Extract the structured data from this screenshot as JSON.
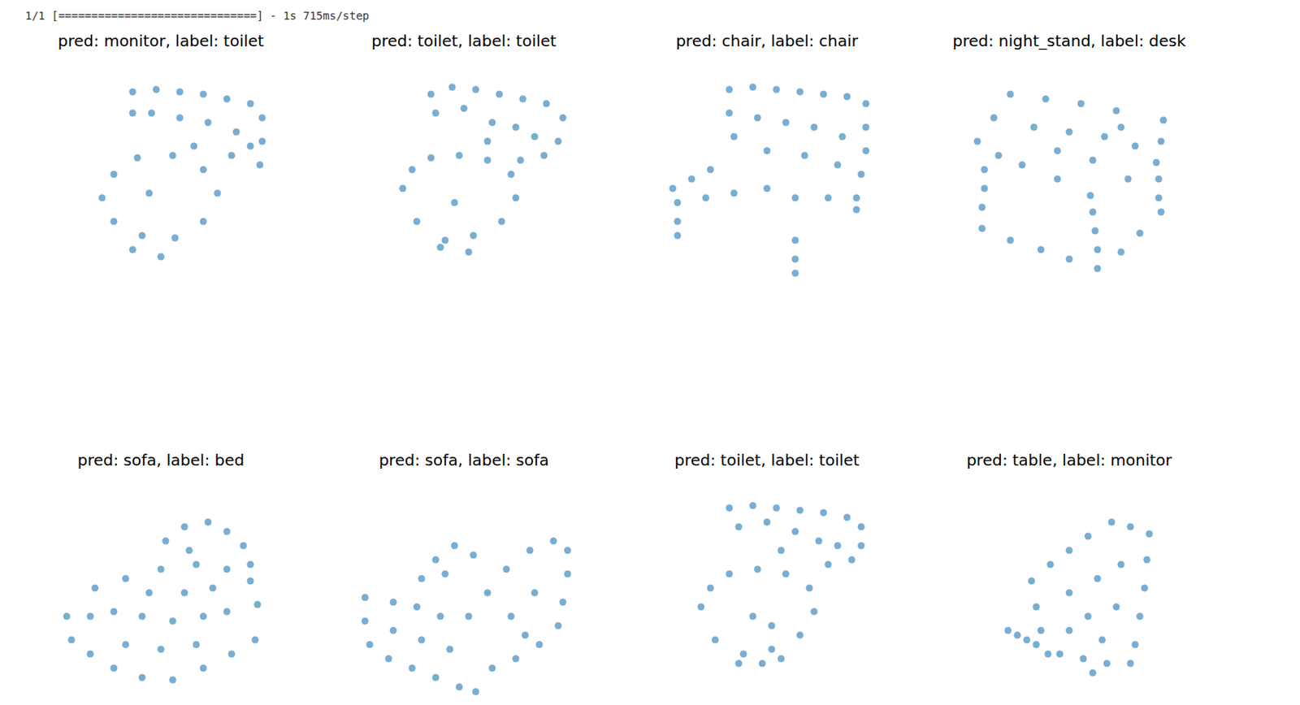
{
  "header": "1/1 [==============================] - 1s 715ms/step",
  "chart_data": [
    {
      "type": "scatter",
      "title": "pred: monitor, label: toilet",
      "color": "#1f77b4",
      "marker": "o",
      "xlim": [
        0,
        100
      ],
      "ylim": [
        0,
        100
      ],
      "tick_labels": false,
      "x": [
        38,
        48,
        58,
        68,
        78,
        88,
        93,
        93,
        92,
        38,
        46,
        58,
        70,
        82,
        64,
        80,
        88,
        25,
        30,
        40,
        55,
        68,
        74,
        68,
        56,
        42,
        30,
        45,
        50,
        38
      ],
      "values": [
        85,
        86,
        85,
        84,
        82,
        80,
        74,
        64,
        54,
        76,
        76,
        74,
        72,
        68,
        62,
        58,
        62,
        40,
        50,
        57,
        58,
        52,
        42,
        30,
        23,
        24,
        30,
        42,
        15,
        18
      ]
    },
    {
      "type": "scatter",
      "title": "pred: toilet, label: toilet",
      "color": "#1f77b4",
      "marker": "o",
      "xlim": [
        0,
        100
      ],
      "ylim": [
        0,
        100
      ],
      "tick_labels": false,
      "x": [
        36,
        45,
        55,
        65,
        75,
        85,
        92,
        90,
        84,
        74,
        38,
        50,
        62,
        72,
        80,
        60,
        24,
        28,
        36,
        48,
        60,
        70,
        72,
        66,
        54,
        42,
        30,
        46,
        52,
        40
      ],
      "values": [
        84,
        87,
        86,
        84,
        82,
        80,
        74,
        64,
        58,
        56,
        76,
        78,
        72,
        70,
        66,
        64,
        44,
        52,
        57,
        58,
        56,
        50,
        40,
        30,
        24,
        22,
        30,
        38,
        17,
        19
      ]
    },
    {
      "type": "scatter",
      "title": "pred: chair, label: chair",
      "color": "#1f77b4",
      "marker": "o",
      "xlim": [
        0,
        100
      ],
      "ylim": [
        0,
        100
      ],
      "tick_labels": false,
      "x": [
        34,
        44,
        54,
        64,
        74,
        84,
        92,
        92,
        92,
        90,
        34,
        36,
        46,
        58,
        70,
        82,
        50,
        66,
        80,
        10,
        18,
        26,
        12,
        24,
        36,
        50,
        62,
        76,
        12,
        12,
        62,
        62,
        62,
        88,
        88
      ],
      "values": [
        86,
        87,
        86,
        85,
        84,
        83,
        80,
        70,
        60,
        50,
        76,
        66,
        74,
        72,
        70,
        66,
        60,
        58,
        54,
        44,
        48,
        52,
        38,
        40,
        42,
        44,
        40,
        40,
        30,
        24,
        22,
        14,
        8,
        40,
        35
      ]
    },
    {
      "type": "scatter",
      "title": "pred: night_stand, label: desk",
      "color": "#1f77b4",
      "marker": "o",
      "xlim": [
        0,
        100
      ],
      "ylim": [
        0,
        100
      ],
      "tick_labels": false,
      "x": [
        11,
        18,
        25,
        40,
        55,
        70,
        90,
        89,
        87,
        75,
        59,
        45,
        30,
        20,
        35,
        50,
        65,
        78,
        45,
        60,
        72,
        14,
        14,
        13,
        13,
        60,
        61,
        62,
        62,
        88,
        88,
        89,
        25,
        38,
        50,
        72,
        80
      ],
      "values": [
        64,
        74,
        84,
        82,
        80,
        77,
        73,
        64,
        55,
        48,
        41,
        48,
        54,
        58,
        70,
        68,
        66,
        62,
        60,
        56,
        70,
        52,
        44,
        36,
        27,
        34,
        26,
        18,
        10,
        48,
        40,
        34,
        22,
        18,
        14,
        17,
        25
      ]
    },
    {
      "type": "scatter",
      "title": "pred: sofa, label: bed",
      "color": "#1f77b4",
      "marker": "o",
      "xlim": [
        0,
        100
      ],
      "ylim": [
        0,
        100
      ],
      "tick_labels": false,
      "x": [
        10,
        12,
        20,
        30,
        42,
        55,
        68,
        80,
        90,
        91,
        88,
        78,
        65,
        50,
        35,
        22,
        20,
        30,
        42,
        55,
        68,
        78,
        35,
        50,
        65,
        45,
        60,
        72,
        52,
        60,
        70,
        78,
        85,
        88,
        62
      ],
      "values": [
        40,
        30,
        24,
        18,
        14,
        13,
        18,
        24,
        30,
        45,
        55,
        60,
        62,
        60,
        56,
        52,
        40,
        42,
        40,
        38,
        40,
        42,
        28,
        26,
        28,
        50,
        50,
        52,
        72,
        78,
        80,
        76,
        70,
        62,
        68
      ]
    },
    {
      "type": "scatter",
      "title": "pred: sofa, label: sofa",
      "color": "#1f77b4",
      "marker": "o",
      "xlim": [
        0,
        100
      ],
      "ylim": [
        0,
        100
      ],
      "tick_labels": false,
      "x": [
        8,
        8,
        10,
        18,
        28,
        38,
        48,
        55,
        20,
        30,
        40,
        20,
        32,
        44,
        52,
        60,
        68,
        78,
        88,
        94,
        94,
        92,
        90,
        82,
        72,
        62,
        70,
        80,
        76,
        32,
        38,
        46,
        54,
        42
      ],
      "values": [
        48,
        38,
        28,
        22,
        18,
        14,
        10,
        8,
        46,
        44,
        40,
        34,
        30,
        26,
        40,
        50,
        60,
        68,
        72,
        68,
        58,
        46,
        36,
        28,
        22,
        18,
        40,
        50,
        32,
        56,
        64,
        70,
        66,
        58
      ]
    },
    {
      "type": "scatter",
      "title": "pred: toilet, label: toilet",
      "color": "#1f77b4",
      "marker": "o",
      "xlim": [
        0,
        100
      ],
      "ylim": [
        0,
        100
      ],
      "tick_labels": false,
      "x": [
        34,
        44,
        54,
        64,
        74,
        84,
        90,
        90,
        86,
        76,
        38,
        50,
        62,
        72,
        80,
        56,
        22,
        26,
        34,
        46,
        58,
        68,
        70,
        64,
        52,
        40,
        28,
        44,
        52,
        38,
        48,
        56
      ],
      "values": [
        86,
        87,
        86,
        85,
        84,
        82,
        78,
        70,
        64,
        62,
        78,
        80,
        76,
        72,
        70,
        68,
        44,
        52,
        58,
        60,
        58,
        52,
        42,
        32,
        26,
        24,
        30,
        40,
        36,
        20,
        20,
        22
      ]
    },
    {
      "type": "scatter",
      "title": "pred: table, label: monitor",
      "color": "#1f77b4",
      "marker": "o",
      "xlim": [
        0,
        100
      ],
      "ylim": [
        0,
        100
      ],
      "tick_labels": false,
      "x": [
        34,
        42,
        50,
        58,
        68,
        76,
        84,
        83,
        82,
        80,
        78,
        76,
        66,
        56,
        46,
        41,
        38,
        36,
        50,
        62,
        72,
        58,
        70,
        50,
        64,
        24,
        28,
        32,
        36,
        60
      ],
      "values": [
        55,
        62,
        68,
        74,
        80,
        78,
        75,
        64,
        52,
        40,
        28,
        20,
        20,
        22,
        24,
        24,
        34,
        44,
        50,
        56,
        62,
        40,
        44,
        34,
        30,
        34,
        32,
        30,
        28,
        16
      ]
    }
  ]
}
